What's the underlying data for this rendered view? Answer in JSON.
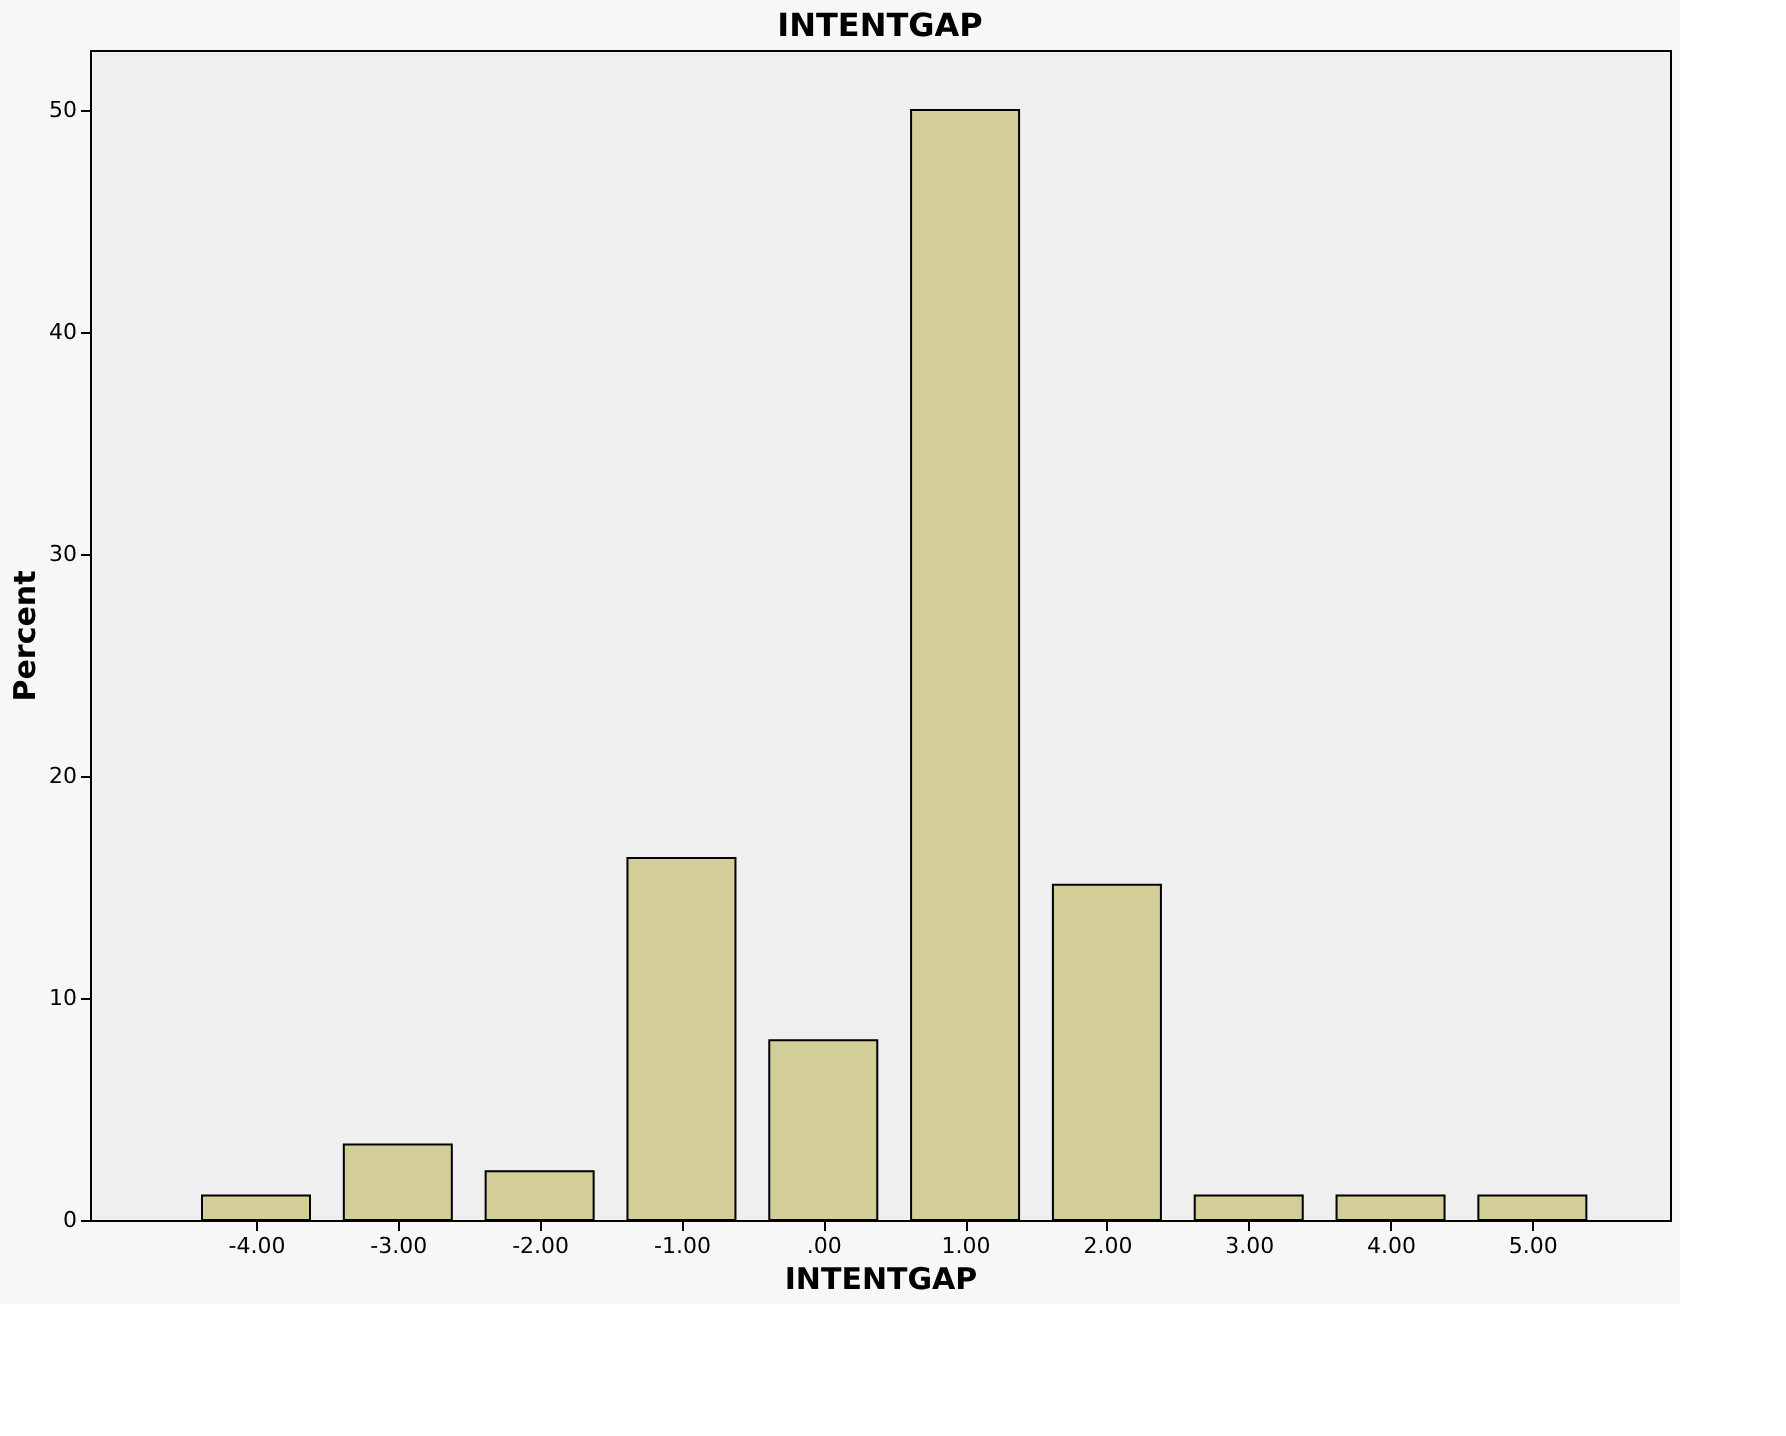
{
  "chart_data": {
    "type": "bar",
    "title": "INTENTGAP",
    "xlabel": "INTENTGAP",
    "ylabel": "Percent",
    "categories": [
      "-4.00",
      "-3.00",
      "-2.00",
      "-1.00",
      ".00",
      "1.00",
      "2.00",
      "3.00",
      "4.00",
      "5.00"
    ],
    "values": [
      1.1,
      3.4,
      2.2,
      16.3,
      8.1,
      50,
      15.1,
      1.1,
      1.1,
      1.1
    ],
    "color": "#d3ce97",
    "ylim": [
      0,
      52.7
    ],
    "yticks": [
      0,
      10,
      20,
      30,
      40,
      50
    ],
    "grid": false
  }
}
